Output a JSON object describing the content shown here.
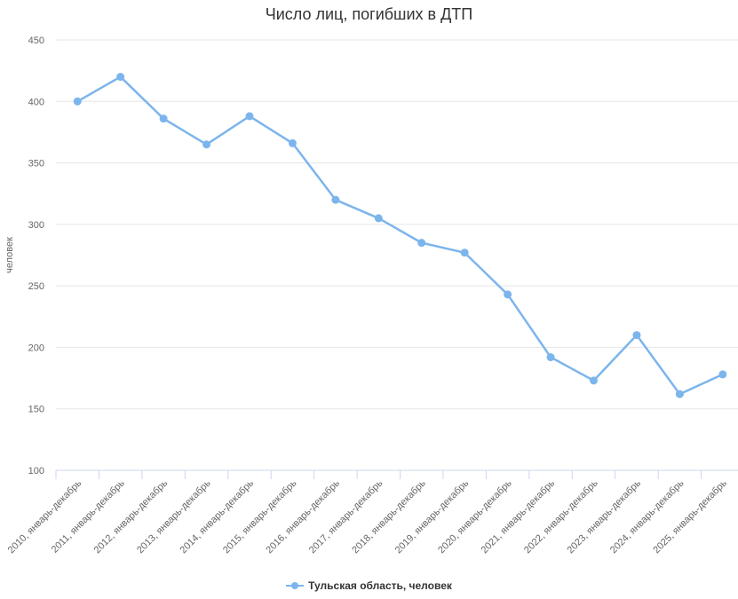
{
  "chart_data": {
    "type": "line",
    "title": "Число лиц, погибших в ДТП",
    "xlabel": "",
    "ylabel": "человек",
    "ylim": [
      100,
      450
    ],
    "yticks": [
      100,
      150,
      200,
      250,
      300,
      350,
      400,
      450
    ],
    "grid": true,
    "legend_position": "bottom",
    "categories": [
      "2010, январь-декабрь",
      "2011, январь-декабрь",
      "2012, январь-декабрь",
      "2013, январь-декабрь",
      "2014, январь-декабрь",
      "2015, январь-декабрь",
      "2016, январь-декабрь",
      "2017, январь-декабрь",
      "2018, январь-декабрь",
      "2019, январь-декабрь",
      "2020, январь-декабрь",
      "2021, январь-декабрь",
      "2022, январь-декабрь",
      "2023, январь-декабрь",
      "2024, январь-декабрь",
      "2025, январь-декабрь"
    ],
    "series": [
      {
        "name": "Тульская область, человек",
        "color": "#7cb5ec",
        "values": [
          400,
          420,
          386,
          365,
          388,
          366,
          320,
          305,
          285,
          277,
          243,
          192,
          173,
          210,
          162,
          178
        ]
      }
    ]
  },
  "colors": {
    "series": "#7cb5ec",
    "grid": "#e6e6e6",
    "axis": "#ccd6eb",
    "tick_label": "#666666",
    "title": "#333333",
    "legend_text": "#333333",
    "background": "#ffffff"
  },
  "legend": {
    "items": [
      {
        "label": "Тульская область, человек",
        "color": "#7cb5ec"
      }
    ]
  }
}
